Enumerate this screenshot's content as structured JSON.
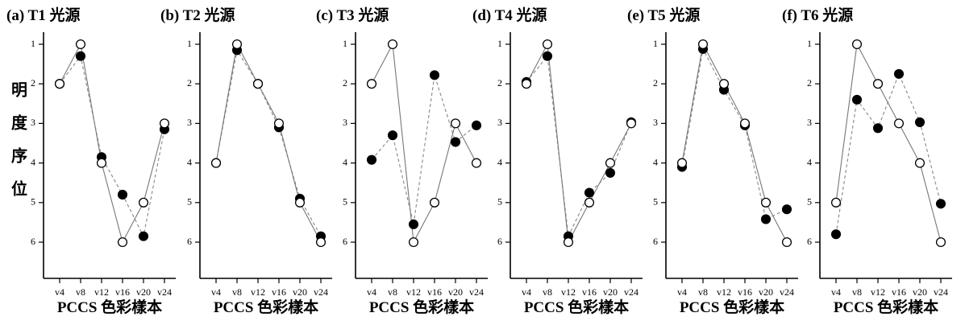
{
  "ylabel_chars": [
    "明",
    "度",
    "序",
    "位"
  ],
  "chart_data": [
    {
      "type": "line",
      "title": "(a) T1 光源",
      "xlabel": "PCCS 色彩樣本",
      "categories": [
        "v4",
        "v8",
        "v12",
        "v16",
        "v20",
        "v24"
      ],
      "yticks": [
        1,
        2,
        3,
        4,
        5,
        6
      ],
      "ylim": [
        1,
        6
      ],
      "y_inverted": true,
      "grid": false,
      "series": [
        {
          "style": "solid line, open circles",
          "values": [
            2,
            1,
            4,
            6,
            5,
            3
          ]
        },
        {
          "style": "dashed line, filled circles",
          "values": [
            2,
            1.3,
            3.85,
            4.8,
            5.85,
            3.15
          ]
        }
      ]
    },
    {
      "type": "line",
      "title": "(b) T2 光源",
      "xlabel": "PCCS 色彩樣本",
      "categories": [
        "v4",
        "v8",
        "v12",
        "v16",
        "v20",
        "v24"
      ],
      "yticks": [
        1,
        2,
        3,
        4,
        5,
        6
      ],
      "ylim": [
        1,
        6
      ],
      "y_inverted": true,
      "grid": false,
      "series": [
        {
          "style": "solid line, open circles",
          "values": [
            4,
            1,
            2,
            3,
            5,
            6
          ]
        },
        {
          "style": "dashed line, filled circles",
          "values": [
            4,
            1.15,
            2,
            3.1,
            4.9,
            5.85
          ]
        }
      ]
    },
    {
      "type": "line",
      "title": "(c) T3 光源",
      "xlabel": "PCCS 色彩樣本",
      "categories": [
        "v4",
        "v8",
        "v12",
        "v16",
        "v20",
        "v24"
      ],
      "yticks": [
        1,
        2,
        3,
        4,
        5,
        6
      ],
      "ylim": [
        1,
        6
      ],
      "y_inverted": true,
      "grid": false,
      "series": [
        {
          "style": "solid line, open circles",
          "values": [
            2,
            1,
            6,
            5,
            3,
            4
          ]
        },
        {
          "style": "dashed line, filled circles",
          "values": [
            3.92,
            3.3,
            5.55,
            1.78,
            3.47,
            3.05
          ]
        }
      ]
    },
    {
      "type": "line",
      "title": "(d) T4 光源",
      "xlabel": "PCCS 色彩樣本",
      "categories": [
        "v4",
        "v8",
        "v12",
        "v16",
        "v20",
        "v24"
      ],
      "yticks": [
        1,
        2,
        3,
        4,
        5,
        6
      ],
      "ylim": [
        1,
        6
      ],
      "y_inverted": true,
      "grid": false,
      "series": [
        {
          "style": "solid line, open circles",
          "values": [
            2,
            1,
            6,
            5,
            4,
            3
          ]
        },
        {
          "style": "dashed line, filled circles",
          "values": [
            1.95,
            1.3,
            5.85,
            4.75,
            4.25,
            2.97
          ]
        }
      ]
    },
    {
      "type": "line",
      "title": "(e) T5 光源",
      "xlabel": "PCCS 色彩樣本",
      "categories": [
        "v4",
        "v8",
        "v12",
        "v16",
        "v20",
        "v24"
      ],
      "yticks": [
        1,
        2,
        3,
        4,
        5,
        6
      ],
      "ylim": [
        1,
        6
      ],
      "y_inverted": true,
      "grid": false,
      "series": [
        {
          "style": "solid line, open circles",
          "values": [
            4,
            1,
            2,
            3,
            5,
            6
          ]
        },
        {
          "style": "dashed line, filled circles",
          "values": [
            4.1,
            1.12,
            2.15,
            3.05,
            5.42,
            5.17
          ]
        }
      ]
    },
    {
      "type": "line",
      "title": "(f) T6 光源",
      "xlabel": "PCCS 色彩樣本",
      "categories": [
        "v4",
        "v8",
        "v12",
        "v16",
        "v20",
        "v24"
      ],
      "yticks": [
        1,
        2,
        3,
        4,
        5,
        6
      ],
      "ylim": [
        1,
        6
      ],
      "y_inverted": true,
      "grid": false,
      "series": [
        {
          "style": "solid line, open circles",
          "values": [
            5,
            1,
            2,
            3,
            4,
            6
          ]
        },
        {
          "style": "dashed line, filled circles",
          "values": [
            5.8,
            2.4,
            3.12,
            1.75,
            2.97,
            5.03
          ]
        }
      ]
    }
  ]
}
